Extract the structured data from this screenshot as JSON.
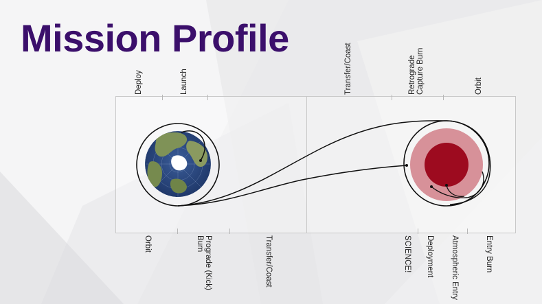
{
  "title": "Mission Profile",
  "colors": {
    "title": "#3b0f6b",
    "planet_outer": "#d4868f",
    "planet_inner": "#9d0b1f",
    "earth_ocean": "#23427d",
    "earth_land": "#7a8d55",
    "orbit_line": "#111111"
  },
  "earth_panel": {
    "top_labels": [
      "Deploy",
      "Launch"
    ],
    "bottom_labels": [
      "Orbit",
      "Prograde (Kick) Burn",
      "Transfer/Coast"
    ]
  },
  "target_panel": {
    "top_labels": [
      "Transfer/Coast",
      "Retrograde Capture Burn",
      "Orbit"
    ],
    "bottom_labels": [
      "SCIENCE!",
      "Deployment",
      "Atmospheric Entry",
      "Entry Burn"
    ]
  }
}
